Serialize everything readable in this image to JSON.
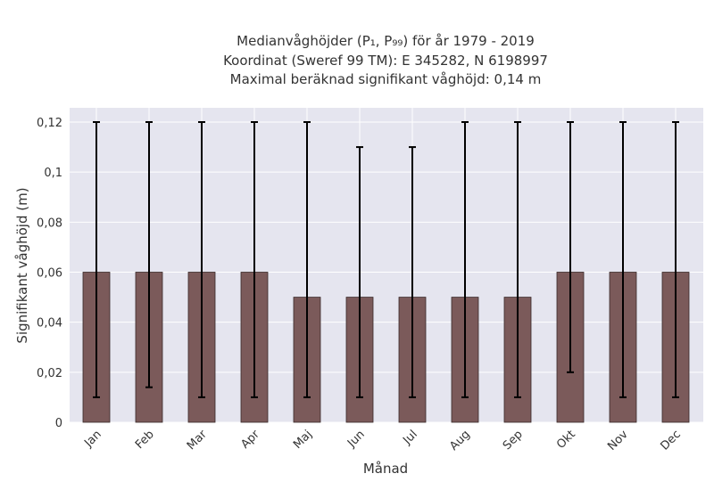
{
  "chart_data": {
    "type": "bar",
    "title_lines": [
      "Medianvåghöjder (P₁, P₉₉) för år 1979 - 2019",
      "Koordinat (Sweref 99 TM): E 345282, N 6198997",
      "Maximal beräknad signifikant våghöjd: 0,14 m"
    ],
    "xlabel": "Månad",
    "ylabel": "Signifikant våghöjd (m)",
    "categories": [
      "Jan",
      "Feb",
      "Mar",
      "Apr",
      "Maj",
      "Jun",
      "Jul",
      "Aug",
      "Sep",
      "Okt",
      "Nov",
      "Dec"
    ],
    "values": [
      0.06,
      0.06,
      0.06,
      0.06,
      0.05,
      0.05,
      0.05,
      0.05,
      0.05,
      0.06,
      0.06,
      0.06
    ],
    "error_low": [
      0.01,
      0.014,
      0.01,
      0.01,
      0.01,
      0.01,
      0.01,
      0.01,
      0.01,
      0.02,
      0.01,
      0.01
    ],
    "error_high": [
      0.12,
      0.12,
      0.12,
      0.12,
      0.12,
      0.11,
      0.11,
      0.12,
      0.12,
      0.12,
      0.12,
      0.12
    ],
    "ylim": [
      0,
      0.125
    ],
    "yticks": [
      0,
      0.02,
      0.04,
      0.06,
      0.08,
      0.1,
      0.12
    ],
    "ytick_labels": [
      "0",
      "0,02",
      "0,04",
      "0,06",
      "0,08",
      "0,1",
      "0,12"
    ],
    "grid": true,
    "colors": {
      "bar": "#7b5a5a",
      "bar_edge": "#3a2a2a",
      "plot_bg": "#e5e5ef",
      "grid": "#ffffff",
      "error": "#000000"
    }
  }
}
